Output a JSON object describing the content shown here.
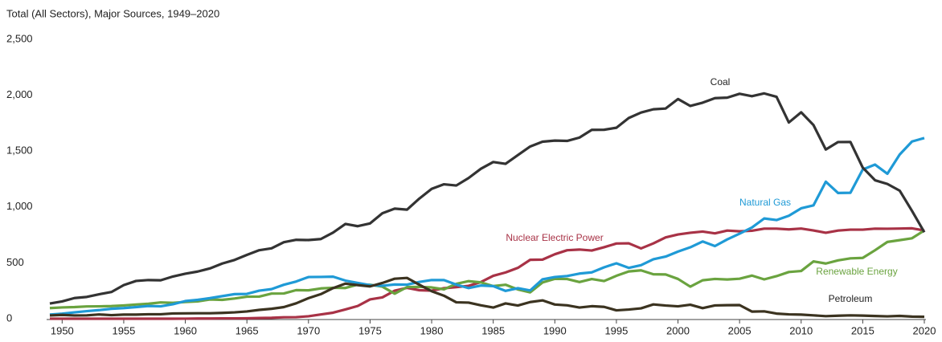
{
  "chart_data": {
    "type": "line",
    "title": "Total (All Sectors), Major Sources, 1949–2020",
    "x": [
      1949,
      1950,
      1951,
      1952,
      1953,
      1954,
      1955,
      1956,
      1957,
      1958,
      1959,
      1960,
      1961,
      1962,
      1963,
      1964,
      1965,
      1966,
      1967,
      1968,
      1969,
      1970,
      1971,
      1972,
      1973,
      1974,
      1975,
      1976,
      1977,
      1978,
      1979,
      1980,
      1981,
      1982,
      1983,
      1984,
      1985,
      1986,
      1987,
      1988,
      1989,
      1990,
      1991,
      1992,
      1993,
      1994,
      1995,
      1996,
      1997,
      1998,
      1999,
      2000,
      2001,
      2002,
      2003,
      2004,
      2005,
      2006,
      2007,
      2008,
      2009,
      2010,
      2011,
      2012,
      2013,
      2014,
      2015,
      2016,
      2017,
      2018,
      2019,
      2020
    ],
    "series": [
      {
        "name": "Coal",
        "color": "#333333",
        "values": [
          136,
          155,
          185,
          195,
          219,
          239,
          301,
          338,
          346,
          344,
          378,
          403,
          422,
          450,
          494,
          526,
          571,
          613,
          630,
          685,
          706,
          704,
          713,
          771,
          848,
          828,
          853,
          944,
          985,
          976,
          1075,
          1162,
          1203,
          1192,
          1259,
          1342,
          1402,
          1386,
          1464,
          1541,
          1584,
          1594,
          1591,
          1621,
          1690,
          1691,
          1709,
          1796,
          1845,
          1874,
          1881,
          1966,
          1904,
          1933,
          1974,
          1978,
          2013,
          1991,
          2016,
          1986,
          1756,
          1847,
          1733,
          1514,
          1581,
          1582,
          1352,
          1239,
          1206,
          1146,
          965,
          774
        ]
      },
      {
        "name": "Natural Gas",
        "color": "#1f9ad6",
        "values": [
          37,
          45,
          57,
          68,
          77,
          89,
          95,
          104,
          114,
          111,
          130,
          158,
          169,
          184,
          202,
          220,
          222,
          251,
          265,
          304,
          333,
          373,
          374,
          376,
          341,
          320,
          300,
          295,
          306,
          305,
          329,
          346,
          346,
          305,
          274,
          297,
          292,
          249,
          273,
          253,
          352,
          373,
          382,
          404,
          415,
          460,
          496,
          455,
          479,
          532,
          556,
          601,
          639,
          691,
          650,
          710,
          761,
          816,
          897,
          883,
          921,
          988,
          1014,
          1226,
          1125,
          1127,
          1335,
          1379,
          1297,
          1469,
          1586,
          1617
        ]
      },
      {
        "name": "Nuclear Electric Power",
        "color": "#a83246",
        "values": [
          0,
          0,
          0,
          0,
          0,
          0,
          0,
          0,
          0,
          0.2,
          0.2,
          0.5,
          2,
          2,
          3,
          3,
          4,
          6,
          8,
          13,
          14,
          22,
          38,
          54,
          83,
          114,
          173,
          191,
          251,
          276,
          255,
          251,
          273,
          283,
          294,
          328,
          384,
          414,
          455,
          527,
          529,
          577,
          613,
          619,
          610,
          640,
          673,
          675,
          629,
          674,
          728,
          754,
          769,
          780,
          764,
          789,
          782,
          787,
          806,
          806,
          799,
          807,
          790,
          769,
          789,
          797,
          797,
          806,
          805,
          807,
          809,
          790
        ]
      },
      {
        "name": "Renewable Energy",
        "color": "#6aa33f",
        "values": [
          95,
          101,
          104,
          110,
          111,
          113,
          119,
          127,
          134,
          146,
          142,
          150,
          155,
          172,
          169,
          181,
          197,
          198,
          225,
          226,
          256,
          254,
          271,
          277,
          275,
          306,
          304,
          287,
          224,
          283,
          285,
          280,
          263,
          312,
          336,
          325,
          292,
          304,
          262,
          236,
          324,
          357,
          355,
          328,
          355,
          337,
          384,
          423,
          433,
          398,
          396,
          356,
          287,
          344,
          356,
          351,
          358,
          386,
          352,
          381,
          418,
          427,
          513,
          494,
          522,
          540,
          544,
          613,
          687,
          703,
          720,
          790
        ]
      },
      {
        "name": "Petroleum",
        "color": "#3b3320",
        "values": [
          29,
          34,
          29,
          30,
          38,
          32,
          37,
          37,
          40,
          40,
          47,
          48,
          49,
          49,
          52,
          57,
          65,
          79,
          89,
          104,
          138,
          184,
          220,
          274,
          314,
          301,
          289,
          320,
          358,
          365,
          304,
          246,
          206,
          147,
          144,
          120,
          100,
          137,
          118,
          149,
          164,
          127,
          120,
          100,
          112,
          106,
          75,
          82,
          93,
          128,
          118,
          111,
          125,
          95,
          119,
          121,
          122,
          64,
          66,
          46,
          39,
          37,
          30,
          23,
          27,
          30,
          28,
          24,
          21,
          25,
          19,
          17
        ]
      }
    ],
    "xlim": [
      1949,
      2020
    ],
    "xticks": [
      1950,
      1955,
      1960,
      1965,
      1970,
      1975,
      1980,
      1985,
      1990,
      1995,
      2000,
      2005,
      2010,
      2015,
      2020
    ],
    "ylim": [
      0,
      2500
    ],
    "yticks": [
      0,
      500,
      {
        "value": 1000,
        "label": "1,000"
      },
      {
        "value": 1500,
        "label": "1,500"
      },
      {
        "value": 2000,
        "label": "2,000"
      },
      {
        "value": 2500,
        "label": "2,500"
      }
    ]
  }
}
